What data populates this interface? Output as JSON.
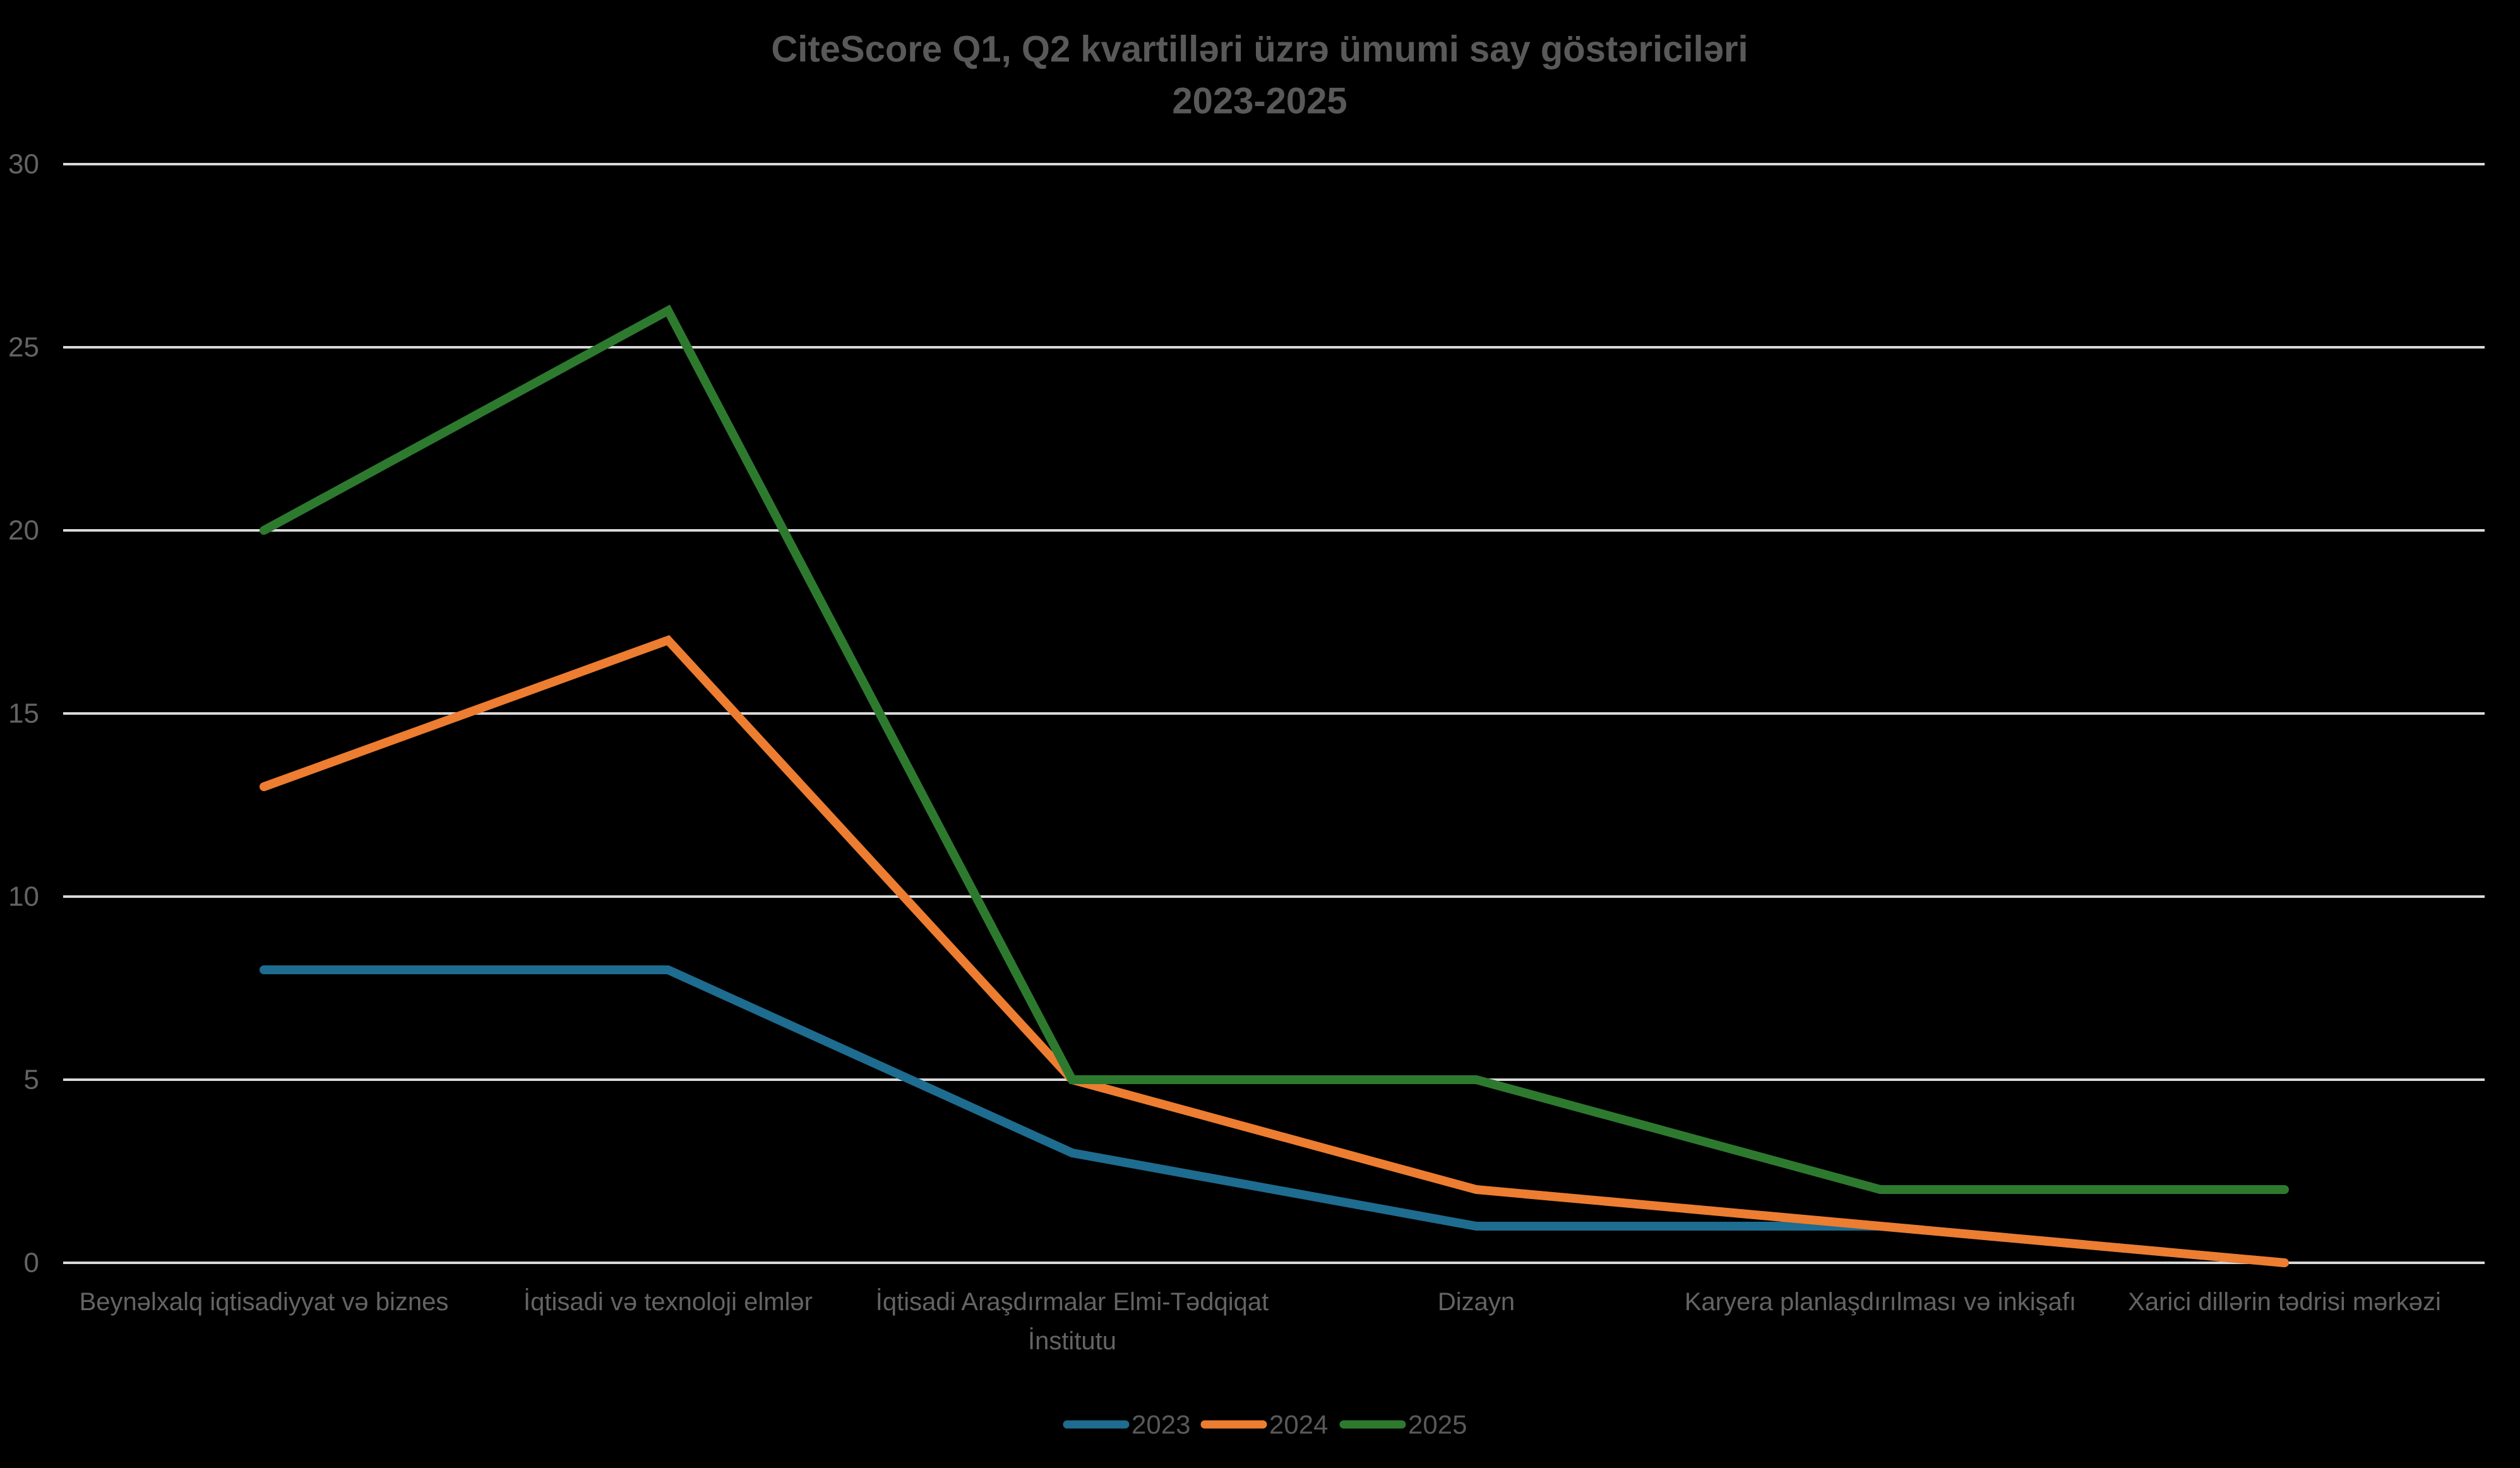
{
  "title": {
    "line1": "CiteScore Q1, Q2 kvartilləri üzrə ümumi say göstəriciləri",
    "line2": "2023-2025"
  },
  "colors": {
    "background": "#000000",
    "gridline": "#D9D9D9",
    "title_text": "#595959",
    "axis_text": "#646464",
    "legend_text": "#595959",
    "series_2023": "#1E6C90",
    "series_2024": "#ED7D31",
    "series_2025": "#2D7A2F"
  },
  "chart_data": {
    "type": "line",
    "title": "CiteScore Q1, Q2 kvartilləri üzrə ümumi say göstəriciləri 2023-2025",
    "xlabel": "",
    "ylabel": "",
    "ylim": [
      0,
      30
    ],
    "yticks": [
      0,
      5,
      10,
      15,
      20,
      25,
      30
    ],
    "grid": "horizontal",
    "legend_position": "bottom-center",
    "categories": [
      {
        "label": "Beynəlxalq iqtisadiyyat və biznes",
        "lines": [
          "Beynəlxalq iqtisadiyyat və biznes"
        ]
      },
      {
        "label": "İqtisadi və texnoloji elmlər",
        "lines": [
          "İqtisadi və texnoloji elmlər"
        ]
      },
      {
        "label": "İqtisadi Araşdırmalar Elmi-Tədqiqat İnstitutu",
        "lines": [
          "İqtisadi Araşdırmalar Elmi-Tədqiqat",
          "İnstitutu"
        ]
      },
      {
        "label": "Dizayn",
        "lines": [
          "Dizayn"
        ]
      },
      {
        "label": "Karyera planlaşdırılması və inkişafı",
        "lines": [
          "Karyera planlaşdırılması və inkişafı"
        ]
      },
      {
        "label": "Xarici dillərin tədrisi mərkəzi",
        "lines": [
          "Xarici dillərin tədrisi mərkəzi"
        ]
      }
    ],
    "series": [
      {
        "name": "2023",
        "color_key": "series_2023",
        "values": [
          8,
          8,
          3,
          1,
          1,
          0
        ]
      },
      {
        "name": "2024",
        "color_key": "series_2024",
        "values": [
          13,
          17,
          5,
          2,
          1,
          0
        ]
      },
      {
        "name": "2025",
        "color_key": "series_2025",
        "values": [
          20,
          26,
          5,
          5,
          2,
          2
        ]
      }
    ]
  },
  "legend": {
    "items": [
      {
        "label": "2023"
      },
      {
        "label": "2024"
      },
      {
        "label": "2025"
      }
    ]
  }
}
